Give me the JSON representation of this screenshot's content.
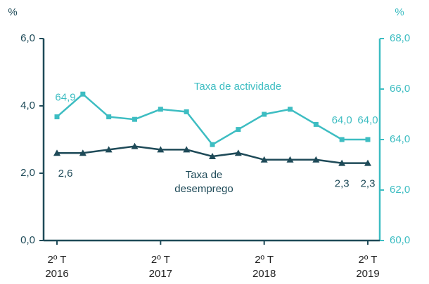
{
  "chart_data": {
    "type": "line",
    "y_label": "%",
    "y2_label": "%",
    "categories": [
      "2º T\n2016",
      null,
      null,
      null,
      "2º T\n2017",
      null,
      null,
      null,
      "2º T\n2018",
      null,
      null,
      null,
      "2º T\n2019"
    ],
    "ylim": [
      0,
      6
    ],
    "yticks": [
      {
        "value": 0,
        "label": "0,0"
      },
      {
        "value": 2,
        "label": "2,0"
      },
      {
        "value": 4,
        "label": "4,0"
      },
      {
        "value": 6,
        "label": "6,0"
      }
    ],
    "y2lim": [
      60,
      68
    ],
    "y2ticks": [
      {
        "value": 60,
        "label": "60,0"
      },
      {
        "value": 62,
        "label": "62,0"
      },
      {
        "value": 64,
        "label": "64,0"
      },
      {
        "value": 66,
        "label": "66,0"
      },
      {
        "value": 68,
        "label": "68,0"
      }
    ],
    "series": [
      {
        "name": "Taxa de actividade",
        "color": "#3dbdc2",
        "axis": "y2",
        "marker": "square",
        "values": [
          64.9,
          65.8,
          64.9,
          64.8,
          65.2,
          65.1,
          63.8,
          64.4,
          65.0,
          65.2,
          64.6,
          64.0,
          64.0
        ],
        "value_labels": [
          "64,9",
          null,
          null,
          null,
          null,
          null,
          null,
          null,
          null,
          null,
          null,
          "64,0",
          "64,0"
        ]
      },
      {
        "name": "Taxa de\ndesemprego",
        "color": "#1e4a58",
        "axis": "y",
        "marker": "triangle",
        "values": [
          2.6,
          2.6,
          2.7,
          2.8,
          2.7,
          2.7,
          2.5,
          2.6,
          2.4,
          2.4,
          2.4,
          2.3,
          2.3
        ],
        "value_labels": [
          "2,6",
          null,
          null,
          null,
          null,
          null,
          null,
          null,
          null,
          null,
          null,
          "2,3",
          "2,3"
        ]
      }
    ]
  }
}
